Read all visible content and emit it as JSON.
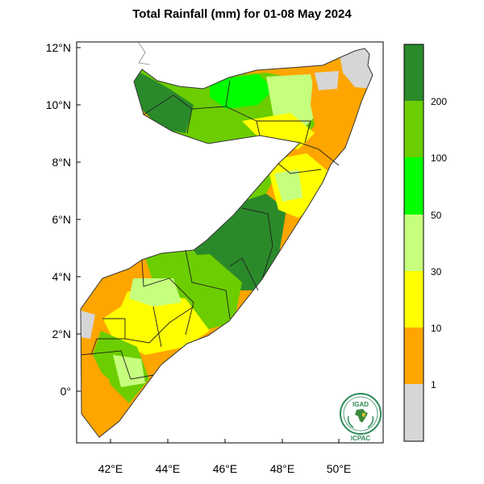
{
  "title": "Total Rainfall (mm) for 01-08 May 2024",
  "map": {
    "latitude_ticks": [
      "12°N",
      "10°N",
      "8°N",
      "6°N",
      "4°N",
      "2°N",
      "0°"
    ],
    "longitude_ticks": [
      "42°E",
      "44°E",
      "46°E",
      "48°E",
      "50°E"
    ],
    "lat_range": [
      -1.6,
      12.2
    ],
    "lon_range": [
      40.9,
      51.6
    ]
  },
  "legend": {
    "labels": [
      "1",
      "10",
      "30",
      "50",
      "100",
      "200"
    ],
    "colors": [
      "#d6d6d6",
      "#ffa500",
      "#ffff00",
      "#c6ff7d",
      "#00ff00",
      "#6ccd00",
      "#2a8a2a"
    ]
  },
  "logo": {
    "text_top": "IGAD",
    "text_bottom": "ICPAC"
  }
}
